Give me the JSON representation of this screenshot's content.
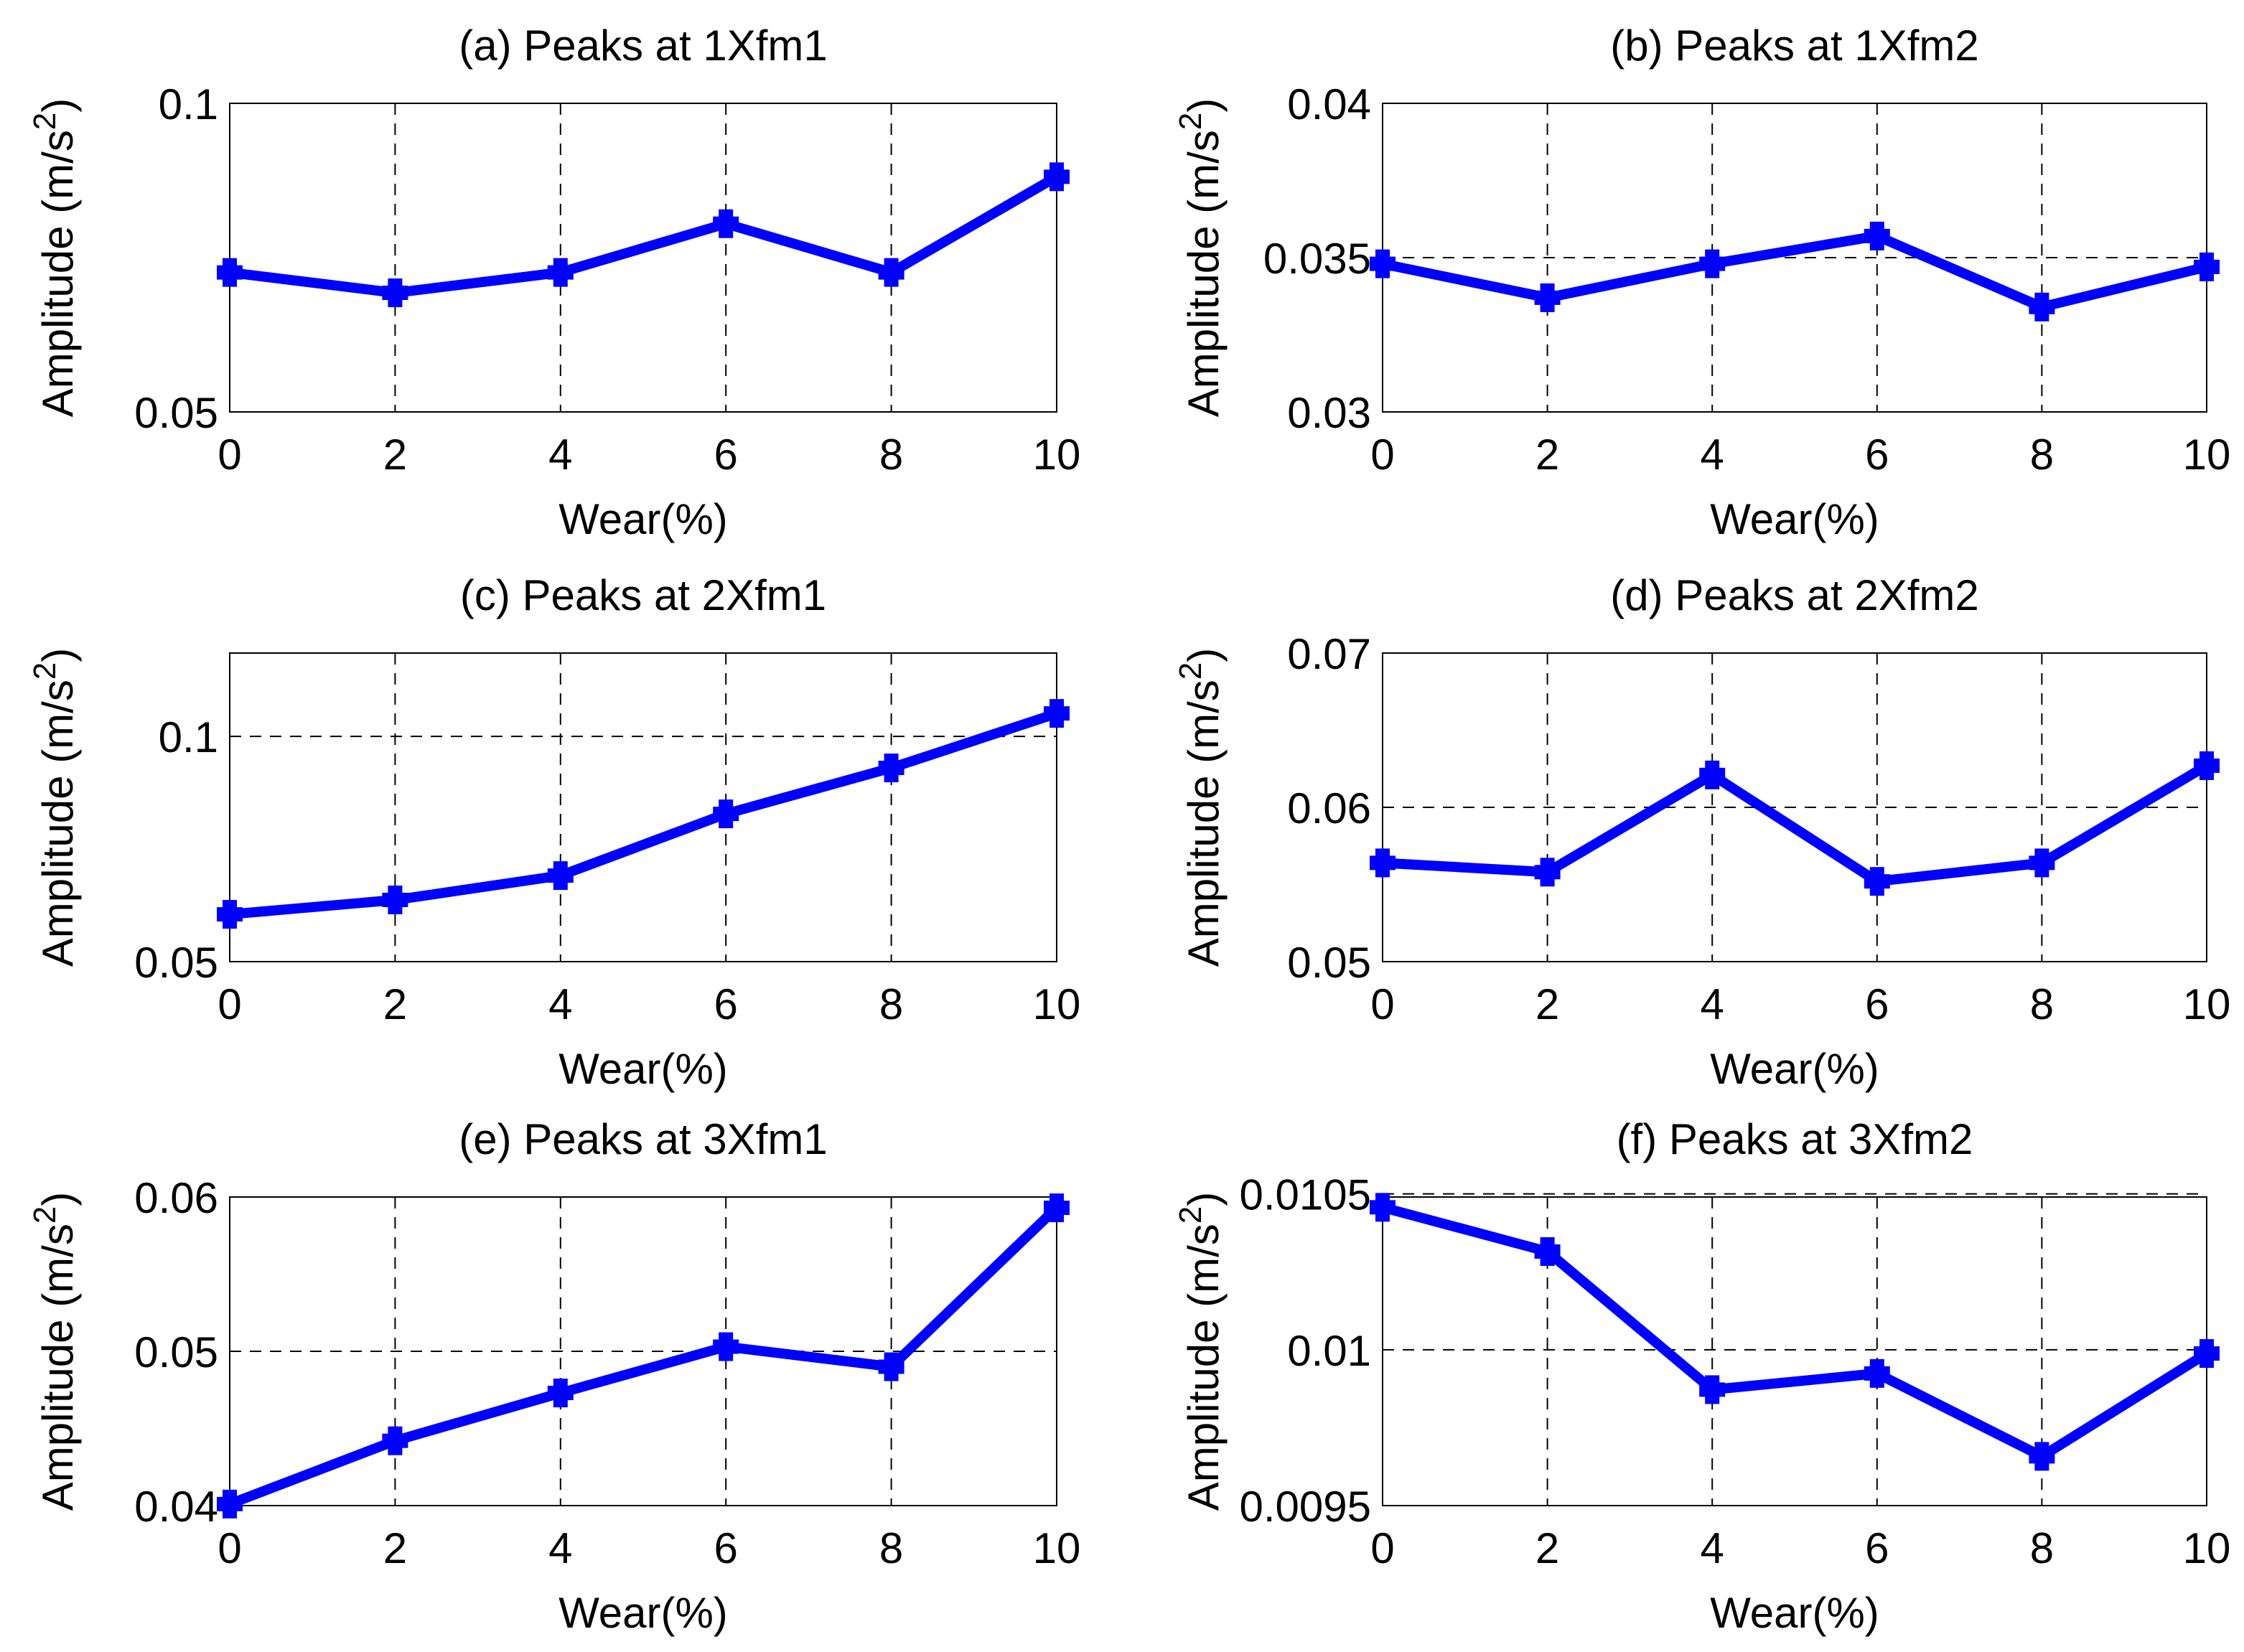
{
  "chart_data": [
    {
      "type": "line",
      "title": "(a) Peaks at 1Xfm1",
      "xlabel": "Wear(%)",
      "ylabel": "Amplitude (m/s^2)",
      "x": [
        0,
        2,
        4,
        6,
        8,
        10
      ],
      "values": [
        0.0726,
        0.0693,
        0.0726,
        0.0805,
        0.0726,
        0.0881
      ],
      "xlim": [
        0,
        10
      ],
      "ylim": [
        0.05,
        0.1
      ],
      "xticks": [
        0,
        2,
        4,
        6,
        8,
        10
      ],
      "xtick_labels": [
        "0",
        "2",
        "4",
        "6",
        "8",
        "10"
      ],
      "yticks": [
        0.05,
        0.1
      ],
      "ytick_labels": [
        "0.05",
        "0.1"
      ],
      "grid": true,
      "color": "#0000FF"
    },
    {
      "type": "line",
      "title": "(b) Peaks at 1Xfm2",
      "xlabel": "Wear(%)",
      "ylabel": "Amplitude (m/s^2)",
      "x": [
        0,
        2,
        4,
        6,
        8,
        10
      ],
      "values": [
        0.0348,
        0.0337,
        0.0348,
        0.0357,
        0.0334,
        0.0347
      ],
      "xlim": [
        0,
        10
      ],
      "ylim": [
        0.03,
        0.04
      ],
      "xticks": [
        0,
        2,
        4,
        6,
        8,
        10
      ],
      "xtick_labels": [
        "0",
        "2",
        "4",
        "6",
        "8",
        "10"
      ],
      "yticks": [
        0.03,
        0.035,
        0.04
      ],
      "ytick_labels": [
        "0.03",
        "0.035",
        "0.04"
      ],
      "grid": true,
      "color": "#0000FF"
    },
    {
      "type": "line",
      "title": "(c) Peaks at 2Xfm1",
      "xlabel": "Wear(%)",
      "ylabel": "Amplitude (m/s^2)",
      "x": [
        0,
        2,
        4,
        6,
        8,
        10
      ],
      "values": [
        0.0605,
        0.0637,
        0.0691,
        0.0828,
        0.093,
        0.1051
      ],
      "xlim": [
        0,
        10
      ],
      "ylim": [
        0.05,
        0.1185
      ],
      "xticks": [
        0,
        2,
        4,
        6,
        8,
        10
      ],
      "xtick_labels": [
        "0",
        "2",
        "4",
        "6",
        "8",
        "10"
      ],
      "yticks": [
        0.05,
        0.1
      ],
      "ytick_labels": [
        "0.05",
        "0.1"
      ],
      "grid": true,
      "color": "#0000FF"
    },
    {
      "type": "line",
      "title": "(d) Peaks at 2Xfm2",
      "xlabel": "Wear(%)",
      "ylabel": "Amplitude (m/s^2)",
      "x": [
        0,
        2,
        4,
        6,
        8,
        10
      ],
      "values": [
        0.0564,
        0.0558,
        0.0621,
        0.0552,
        0.0564,
        0.0627
      ],
      "xlim": [
        0,
        10
      ],
      "ylim": [
        0.05,
        0.07
      ],
      "xticks": [
        0,
        2,
        4,
        6,
        8,
        10
      ],
      "xtick_labels": [
        "0",
        "2",
        "4",
        "6",
        "8",
        "10"
      ],
      "yticks": [
        0.05,
        0.06,
        0.07
      ],
      "ytick_labels": [
        "0.05",
        "0.06",
        "0.07"
      ],
      "grid": true,
      "color": "#0000FF"
    },
    {
      "type": "line",
      "title": "(e) Peaks at 3Xfm1",
      "xlabel": "Wear(%)",
      "ylabel": "Amplitude (m/s^2)",
      "x": [
        0,
        2,
        4,
        6,
        8,
        10
      ],
      "values": [
        0.0401,
        0.0442,
        0.0473,
        0.0503,
        0.049,
        0.0593
      ],
      "xlim": [
        0,
        10
      ],
      "ylim": [
        0.04,
        0.06
      ],
      "xticks": [
        0,
        2,
        4,
        6,
        8,
        10
      ],
      "xtick_labels": [
        "0",
        "2",
        "4",
        "6",
        "8",
        "10"
      ],
      "yticks": [
        0.04,
        0.05,
        0.06
      ],
      "ytick_labels": [
        "0.04",
        "0.05",
        "0.06"
      ],
      "grid": true,
      "color": "#0000FF"
    },
    {
      "type": "line",
      "title": "(f) Peaks at 3Xfm2",
      "xlabel": "Wear(%)",
      "ylabel": "Amplitude (m/s^2)",
      "x": [
        0,
        2,
        4,
        6,
        8,
        10
      ],
      "values": [
        0.010457,
        0.010315,
        0.009872,
        0.009924,
        0.009658,
        0.009988
      ],
      "xlim": [
        0,
        10
      ],
      "ylim": [
        0.0095,
        0.01049
      ],
      "xticks": [
        0,
        2,
        4,
        6,
        8,
        10
      ],
      "xtick_labels": [
        "0",
        "2",
        "4",
        "6",
        "8",
        "10"
      ],
      "yticks": [
        0.0095,
        0.01,
        0.0105
      ],
      "ytick_labels": [
        "0.0095",
        "0.01",
        "0.0105"
      ],
      "grid": true,
      "color": "#0000FF"
    }
  ]
}
